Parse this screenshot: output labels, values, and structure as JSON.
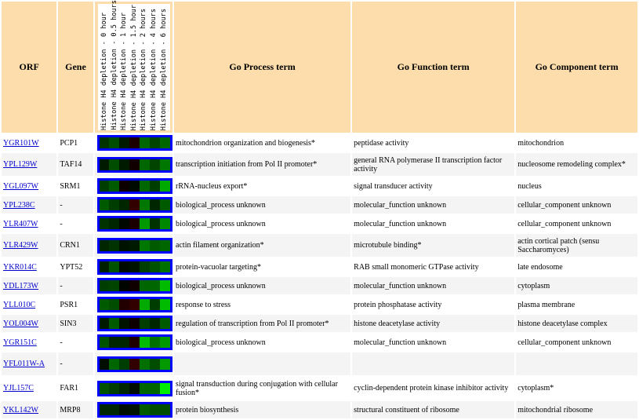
{
  "headers": {
    "orf": "ORF",
    "gene": "Gene",
    "process": "Go Process term",
    "function": "Go Function term",
    "component": "Go Component term",
    "conditions": [
      "Histone H4 depletion - 0 hour",
      "Histone H4 depletion - 0.5 hours",
      "Histone H4 depletion - 1 hour",
      "Histone H4 depletion - 1.5 hour",
      "Histone H4 depletion - 2 hours",
      "Histone H4 depletion - 4 hours",
      "Histone H4 depletion - 6 hours"
    ]
  },
  "colors": {
    "header_bg": "#fdddab",
    "heatmap_border": "#0000ff",
    "link": "#0000cc",
    "row_alt": "#f4f4f4"
  },
  "rows": [
    {
      "orf": "YGR101W",
      "gene": "PCP1",
      "process": "mitochondrion organization and biogenesis*",
      "function": "peptidase activity",
      "component": "mitochondrion",
      "heat": [
        "#003300",
        "#004d00",
        "#001a00",
        "#1a0000",
        "#006600",
        "#004400",
        "#006600"
      ]
    },
    {
      "orf": "YPL129W",
      "gene": "TAF14",
      "process": "transcription initiation from Pol II promoter*",
      "function": "general RNA polymerase II transcription factor activity",
      "component": "nucleosome remodeling complex*",
      "heat": [
        "#001a00",
        "#004d00",
        "#001a00",
        "#110000",
        "#006600",
        "#004400",
        "#007700"
      ]
    },
    {
      "orf": "YGL097W",
      "gene": "SRM1",
      "process": "rRNA-nucleus export*",
      "function": "signal transducer activity",
      "component": "nucleus",
      "heat": [
        "#003d00",
        "#005a00",
        "#0d0000",
        "#000a00",
        "#006600",
        "#003d00",
        "#00aa00"
      ]
    },
    {
      "orf": "YPL238C",
      "gene": "-",
      "process": "biological_process unknown",
      "function": "molecular_function unknown",
      "component": "cellular_component unknown",
      "heat": [
        "#005a00",
        "#003d00",
        "#002600",
        "#330000",
        "#007700",
        "#002600",
        "#005a00"
      ]
    },
    {
      "orf": "YLR407W",
      "gene": "-",
      "process": "biological_process unknown",
      "function": "molecular_function unknown",
      "component": "cellular_component unknown",
      "heat": [
        "#003300",
        "#002600",
        "#000800",
        "#1a0000",
        "#009900",
        "#003300",
        "#008800"
      ]
    },
    {
      "orf": "YLR429W",
      "gene": "CRN1",
      "process": "actin filament organization*",
      "function": "microtubule binding*",
      "component": "actin cortical patch (sensu Saccharomyces)",
      "heat": [
        "#002600",
        "#003300",
        "#001300",
        "#001a00",
        "#007700",
        "#005a00",
        "#006600"
      ]
    },
    {
      "orf": "YKR014C",
      "gene": "YPT52",
      "process": "protein-vacuolar targeting*",
      "function": "RAB small monomeric GTPase activity",
      "component": "late endosome",
      "heat": [
        "#001f00",
        "#005200",
        "#000a00",
        "#001300",
        "#003d00",
        "#005200",
        "#007000"
      ]
    },
    {
      "orf": "YDL173W",
      "gene": "-",
      "process": "biological_process unknown",
      "function": "molecular_function unknown",
      "component": "cytoplasm",
      "heat": [
        "#003d00",
        "#004400",
        "#000500",
        "#110000",
        "#006600",
        "#006600",
        "#00bb00"
      ]
    },
    {
      "orf": "YLL010C",
      "gene": "PSR1",
      "process": "response to stress",
      "function": "protein phosphatase activity",
      "component": "plasma membrane",
      "heat": [
        "#005a00",
        "#004d00",
        "#220000",
        "#330000",
        "#00aa00",
        "#003d00",
        "#00bb00"
      ]
    },
    {
      "orf": "YOL004W",
      "gene": "SIN3",
      "process": "regulation of transcription from Pol II promoter*",
      "function": "histone deacetylase activity",
      "component": "histone deacetylase complex",
      "heat": [
        "#001a00",
        "#005a00",
        "#001300",
        "#0d0000",
        "#003d00",
        "#002600",
        "#005a00"
      ]
    },
    {
      "orf": "YGR151C",
      "gene": "-",
      "process": "biological_process unknown",
      "function": "molecular_function unknown",
      "component": "cellular_component unknown",
      "heat": [
        "#005200",
        "#002600",
        "#002600",
        "#1f0000",
        "#00bb00",
        "#007000",
        "#009900"
      ]
    },
    {
      "orf": "YFL011W-A",
      "gene": "-",
      "process": "",
      "function": "",
      "component": "",
      "heat": [
        "#000d00",
        "#006600",
        "#003d00",
        "#330000",
        "#007000",
        "#004d00",
        "#009900"
      ]
    },
    {
      "orf": "YJL157C",
      "gene": "FAR1",
      "process": "signal transduction during conjugation with cellular fusion*",
      "function": "cyclin-dependent protein kinase inhibitor activity",
      "component": "cytoplasm*",
      "heat": [
        "#005200",
        "#003d00",
        "#002600",
        "#000d00",
        "#006600",
        "#006600",
        "#00ee00"
      ]
    },
    {
      "orf": "YKL142W",
      "gene": "MRP8",
      "process": "protein biosynthesis",
      "function": "structural constituent of ribosome",
      "component": "mitochondrial ribosome",
      "heat": [
        "#002600",
        "#002600",
        "#000d00",
        "#001300",
        "#005a00",
        "#004d00",
        "#004d00"
      ]
    }
  ]
}
